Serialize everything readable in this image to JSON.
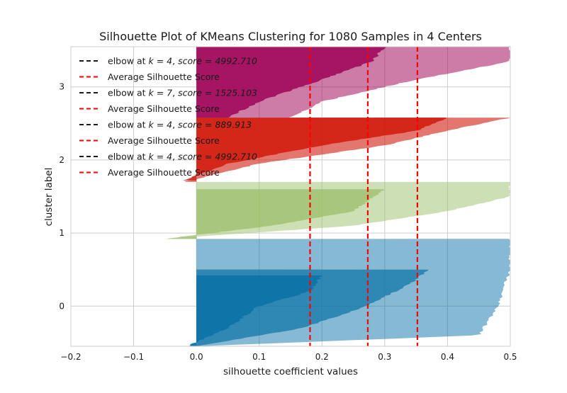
{
  "chart_data": {
    "type": "area",
    "title": "Silhouette Plot of KMeans Clustering for 1080 Samples in 4 Centers",
    "xlabel": "silhouette coefficient values",
    "ylabel": "cluster label",
    "xlim": [
      -0.2,
      0.5
    ],
    "ylim": [
      -0.55,
      3.55
    ],
    "grid": true,
    "x_ticks": [
      -0.2,
      -0.1,
      0.0,
      0.1,
      0.2,
      0.3,
      0.4,
      0.5
    ],
    "x_tick_labels": [
      "−0.2",
      "−0.1",
      "0.0",
      "0.1",
      "0.2",
      "0.3",
      "0.4",
      "0.5"
    ],
    "y_ticks": [
      0,
      1,
      2,
      3
    ],
    "y_tick_labels": [
      "0",
      "1",
      "2",
      "3"
    ],
    "legend_position": "top-left",
    "legend": [
      {
        "label_prefix": "elbow at ",
        "k": "k = 4",
        "sep": ", ",
        "score": "score = 4992.710",
        "color": "#1a1a1a"
      },
      {
        "label": "Average Silhouette Score",
        "color": "#ff0000"
      },
      {
        "label_prefix": "elbow at ",
        "k": "k = 7",
        "sep": ", ",
        "score": "score = 1525.103",
        "color": "#1a1a1a"
      },
      {
        "label": "Average Silhouette Score",
        "color": "#ff0000"
      },
      {
        "label_prefix": "elbow at ",
        "k": "k = 4",
        "sep": ", ",
        "score": "score = 889.913",
        "color": "#1a1a1a"
      },
      {
        "label": "Average Silhouette Score",
        "color": "#ff0000"
      },
      {
        "label_prefix": "elbow at ",
        "k": "k = 4",
        "sep": ", ",
        "score": "score = 4992.710",
        "color": "#1a1a1a"
      },
      {
        "label": "Average Silhouette Score",
        "color": "#ff0000"
      }
    ],
    "average_scores": [
      0.181,
      0.273,
      0.352
    ],
    "average_color": "#ff0000",
    "clusters": [
      {
        "label": "0",
        "color": "#0e73a8",
        "y_range": [
          -0.55,
          0.92
        ],
        "layers": [
          {
            "opacity": 0.5,
            "y_range": [
              -0.55,
              0.92
            ],
            "profile": [
              [
                0.92,
                0.5
              ],
              [
                0.5,
                0.5
              ],
              [
                0.0,
                0.48
              ],
              [
                -0.4,
                0.45
              ],
              [
                -0.55,
                0.0
              ]
            ]
          },
          {
            "opacity": 0.72,
            "y_range": [
              -0.55,
              0.5
            ],
            "profile": [
              [
                0.5,
                0.37
              ],
              [
                0.3,
                0.34
              ],
              [
                0.0,
                0.27
              ],
              [
                -0.3,
                0.17
              ],
              [
                -0.55,
                0.0
              ]
            ]
          },
          {
            "opacity": 0.95,
            "y_range": [
              -0.55,
              0.42
            ],
            "profile": [
              [
                0.42,
                0.2
              ],
              [
                0.2,
                0.18
              ],
              [
                0.0,
                0.1
              ],
              [
                -0.3,
                0.05
              ],
              [
                -0.55,
                -0.015
              ]
            ]
          }
        ]
      },
      {
        "label": "1",
        "color": "#9bbf6a",
        "y_range": [
          0.92,
          1.7
        ],
        "layers": [
          {
            "opacity": 0.5,
            "y_range": [
              0.92,
              1.7
            ],
            "profile": [
              [
                1.7,
                0.5
              ],
              [
                1.5,
                0.5
              ],
              [
                1.3,
                0.4
              ],
              [
                1.1,
                0.25
              ],
              [
                0.92,
                -0.05
              ]
            ]
          },
          {
            "opacity": 0.75,
            "y_range": [
              0.92,
              1.6
            ],
            "profile": [
              [
                1.6,
                0.3
              ],
              [
                1.3,
                0.25
              ],
              [
                1.1,
                0.12
              ],
              [
                0.92,
                -0.05
              ]
            ]
          }
        ]
      },
      {
        "label": "2",
        "color": "#d11d10",
        "y_range": [
          1.7,
          2.58
        ],
        "layers": [
          {
            "opacity": 0.6,
            "y_range": [
              1.7,
              2.58
            ],
            "profile": [
              [
                2.58,
                0.5
              ],
              [
                2.4,
                0.4
              ],
              [
                2.2,
                0.3
              ],
              [
                1.95,
                0.1
              ],
              [
                1.7,
                -0.02
              ]
            ]
          },
          {
            "opacity": 0.9,
            "y_range": [
              1.72,
              2.58
            ],
            "profile": [
              [
                2.58,
                0.4
              ],
              [
                2.4,
                0.35
              ],
              [
                2.2,
                0.2
              ],
              [
                1.95,
                0.05
              ],
              [
                1.72,
                -0.02
              ]
            ]
          }
        ]
      },
      {
        "label": "3",
        "color": "#a3105f",
        "y_range": [
          2.58,
          3.55
        ],
        "layers": [
          {
            "opacity": 0.55,
            "y_range": [
              2.58,
              3.55
            ],
            "profile": [
              [
                3.55,
                0.5
              ],
              [
                3.35,
                0.5
              ],
              [
                3.1,
                0.35
              ],
              [
                2.8,
                0.2
              ],
              [
                2.58,
                0.15
              ]
            ]
          },
          {
            "opacity": 0.95,
            "y_range": [
              2.58,
              3.55
            ],
            "profile": [
              [
                3.55,
                0.3
              ],
              [
                3.35,
                0.28
              ],
              [
                3.1,
                0.2
              ],
              [
                2.8,
                0.1
              ],
              [
                2.58,
                0.05
              ]
            ]
          }
        ]
      }
    ]
  }
}
